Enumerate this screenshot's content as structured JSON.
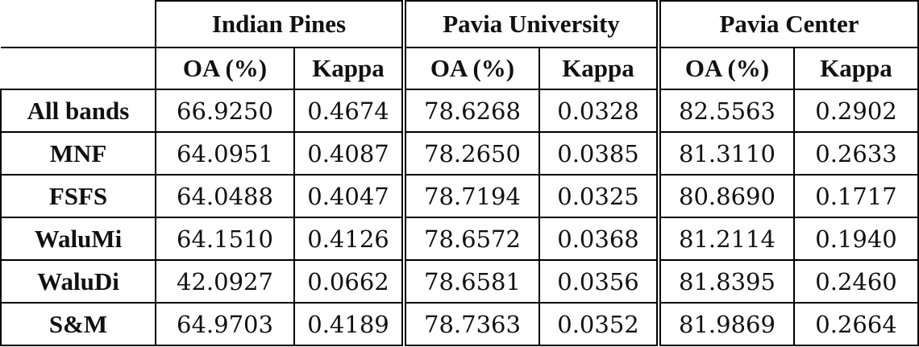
{
  "chart_data": {
    "type": "table",
    "groups": [
      {
        "name": "Indian Pines",
        "metrics": [
          "OA (%)",
          "Kappa"
        ]
      },
      {
        "name": "Pavia University",
        "metrics": [
          "OA (%)",
          "Kappa"
        ]
      },
      {
        "name": "Pavia Center",
        "metrics": [
          "OA (%)",
          "Kappa"
        ]
      }
    ],
    "rows": [
      {
        "label": "All bands",
        "values": [
          "66.9250",
          "0.4674",
          "78.6268",
          "0.0328",
          "82.5563",
          "0.2902"
        ]
      },
      {
        "label": "MNF",
        "values": [
          "64.0951",
          "0.4087",
          "78.2650",
          "0.0385",
          "81.3110",
          "0.2633"
        ]
      },
      {
        "label": "FSFS",
        "values": [
          "64.0488",
          "0.4047",
          "78.7194",
          "0.0325",
          "80.8690",
          "0.1717"
        ]
      },
      {
        "label": "WaluMi",
        "values": [
          "64.1510",
          "0.4126",
          "78.6572",
          "0.0368",
          "81.2114",
          "0.1940"
        ]
      },
      {
        "label": "WaluDi",
        "values": [
          "42.0927",
          "0.0662",
          "78.6581",
          "0.0356",
          "81.8395",
          "0.2460"
        ]
      },
      {
        "label": "S&M",
        "values": [
          "64.9703",
          "0.4189",
          "78.7363",
          "0.0352",
          "81.9869",
          "0.2664"
        ]
      }
    ]
  }
}
